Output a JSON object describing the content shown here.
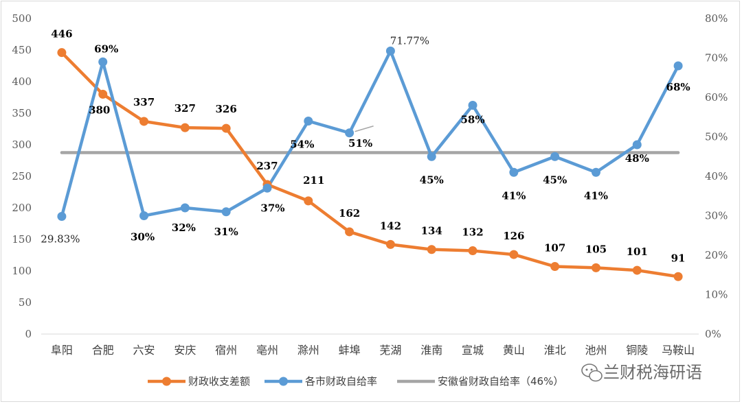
{
  "chart_data": {
    "type": "line",
    "categories": [
      "阜阳",
      "合肥",
      "六安",
      "安庆",
      "宿州",
      "亳州",
      "滁州",
      "蚌埠",
      "芜湖",
      "淮南",
      "宣城",
      "黄山",
      "淮北",
      "池州",
      "铜陵",
      "马鞍山"
    ],
    "series": [
      {
        "name": "财政收支差额",
        "axis": "left",
        "color": "#ED7D31",
        "values": [
          446,
          380,
          337,
          327,
          326,
          237,
          211,
          162,
          142,
          134,
          132,
          126,
          107,
          105,
          101,
          91
        ],
        "labels": [
          "446",
          "380",
          "337",
          "327",
          "326",
          "237",
          "211",
          "162",
          "142",
          "134",
          "132",
          "126",
          "107",
          "105",
          "101",
          "91"
        ]
      },
      {
        "name": "各市财政自给率",
        "axis": "right",
        "color": "#5B9BD5",
        "values": [
          29.83,
          69,
          30,
          32,
          31,
          37,
          54,
          51,
          71.77,
          45,
          58,
          41,
          45,
          41,
          48,
          68
        ],
        "labels": [
          "29.83%",
          "69%",
          "30%",
          "32%",
          "31%",
          "37%",
          "54%",
          "51%",
          "71.77%",
          "45%",
          "58%",
          "41%",
          "45%",
          "41%",
          "48%",
          "68%"
        ]
      },
      {
        "name": "安徽省财政自给率（46%）",
        "axis": "right",
        "color": "#A5A5A5",
        "values": [
          46,
          46,
          46,
          46,
          46,
          46,
          46,
          46,
          46,
          46,
          46,
          46,
          46,
          46,
          46,
          46
        ]
      }
    ],
    "y_left": {
      "min": 0,
      "max": 500,
      "step": 50,
      "ticks": [
        "0",
        "50",
        "100",
        "150",
        "200",
        "250",
        "300",
        "350",
        "400",
        "450",
        "500"
      ]
    },
    "y_right": {
      "min": 0,
      "max": 80,
      "step": 10,
      "ticks": [
        "0%",
        "10%",
        "20%",
        "30%",
        "40%",
        "50%",
        "60%",
        "70%",
        "80%"
      ]
    },
    "grid": false,
    "legend_position": "bottom"
  },
  "watermark": "兰财税海研语"
}
